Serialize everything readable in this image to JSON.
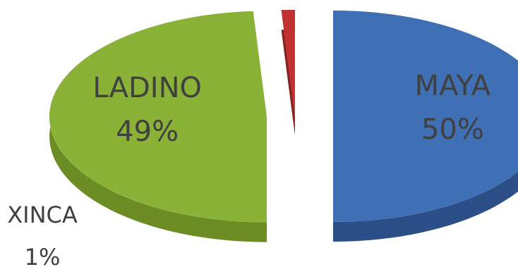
{
  "chart_data": {
    "type": "pie",
    "style": "3d-exploded",
    "categories": [
      "MAYA",
      "LADINO",
      "XINCA"
    ],
    "values": [
      50,
      49,
      1
    ],
    "labels": [
      "MAYA",
      "LADINO",
      "XINCA"
    ],
    "percent_labels": [
      "50%",
      "49%",
      "1%"
    ],
    "colors": [
      "#3f6fb5",
      "#8ab236",
      "#c0312f"
    ],
    "side_colors": [
      "#2b4f86",
      "#6c8c24",
      "#8e1f1f"
    ],
    "legend": "none"
  }
}
